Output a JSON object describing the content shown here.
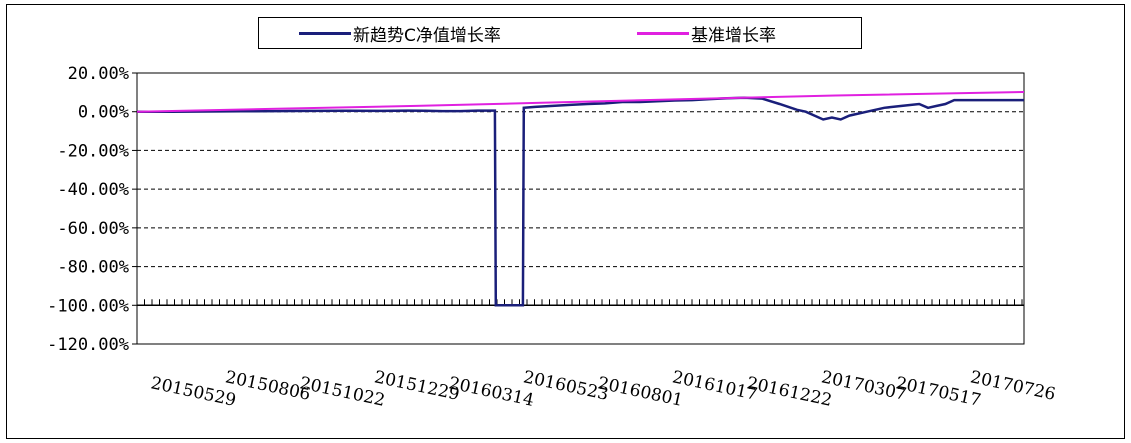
{
  "chart_data": {
    "type": "line",
    "legend_position": "top-center",
    "grid": true,
    "ylim": [
      -120,
      20
    ],
    "yticks": [
      "20.00%",
      "0.00%",
      "-20.00%",
      "-40.00%",
      "-60.00%",
      "-80.00%",
      "-100.00%",
      "-120.00%"
    ],
    "ytick_values": [
      20,
      0,
      -20,
      -40,
      -60,
      -80,
      -100,
      -120
    ],
    "xticks": [
      "20150529",
      "20150806",
      "20151022",
      "20151229",
      "20160314",
      "20160523",
      "20160801",
      "20161017",
      "20161222",
      "20170307",
      "20170517",
      "20170726"
    ],
    "x_index_range": [
      0,
      24
    ],
    "series": [
      {
        "name": "新趋势C净值增长率",
        "color": "#1a1f7a",
        "points": [
          [
            0,
            0.0
          ],
          [
            2,
            0.0
          ],
          [
            4,
            0.1
          ],
          [
            6,
            0.2
          ],
          [
            8,
            0.3
          ],
          [
            10,
            0.4
          ],
          [
            12,
            0.5
          ],
          [
            14,
            0.4
          ],
          [
            15.5,
            0.6
          ],
          [
            16.5,
            0.5
          ],
          [
            17.5,
            0.3
          ],
          [
            18.5,
            0.3
          ],
          [
            19.5,
            0.6
          ],
          [
            20.5,
            0.6
          ],
          [
            20.55,
            -100.0
          ],
          [
            21.5,
            -100.0
          ],
          [
            22.1,
            -100.0
          ],
          [
            22.15,
            2.0
          ],
          [
            22.8,
            2.5
          ],
          [
            23.8,
            3.0
          ],
          [
            24.8,
            3.5
          ],
          [
            25.8,
            4.0
          ],
          [
            26.8,
            4.3
          ],
          [
            27.8,
            5.0
          ],
          [
            28.8,
            5.0
          ],
          [
            29.8,
            5.4
          ],
          [
            30.8,
            5.8
          ],
          [
            31.8,
            6.0
          ],
          [
            32.8,
            6.5
          ],
          [
            33.8,
            7.0
          ],
          [
            34.8,
            7.2
          ],
          [
            35.8,
            6.8
          ],
          [
            36.8,
            4.0
          ],
          [
            37.8,
            1.0
          ],
          [
            38.3,
            0.0
          ],
          [
            38.8,
            -2.0
          ],
          [
            39.3,
            -4.0
          ],
          [
            39.8,
            -3.0
          ],
          [
            40.3,
            -4.0
          ],
          [
            40.8,
            -2.0
          ],
          [
            41.8,
            0.0
          ],
          [
            42.8,
            2.0
          ],
          [
            43.8,
            3.0
          ],
          [
            44.8,
            4.0
          ],
          [
            45.3,
            2.0
          ],
          [
            45.8,
            3.0
          ],
          [
            46.3,
            4.0
          ],
          [
            46.8,
            6.0
          ],
          [
            47.8,
            6.0
          ],
          [
            48.8,
            6.0
          ],
          [
            49.8,
            6.0
          ],
          [
            50.8,
            6.0
          ]
        ]
      },
      {
        "name": "基准增长率",
        "color": "#e020e0",
        "points": [
          [
            0,
            0.0
          ],
          [
            8,
            1.5
          ],
          [
            16,
            3.0
          ],
          [
            24,
            4.8
          ],
          [
            32,
            6.6
          ],
          [
            40,
            8.4
          ],
          [
            50.8,
            10.2
          ]
        ]
      }
    ]
  }
}
